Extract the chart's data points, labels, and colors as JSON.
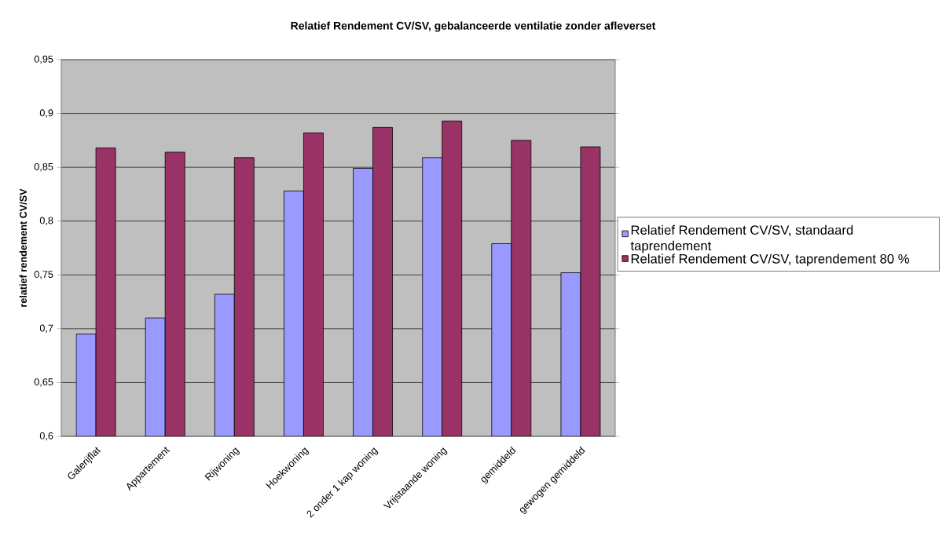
{
  "chart_data": {
    "type": "bar",
    "title": "Relatief Rendement CV/SV, gebalanceerde ventilatie zonder afleverset",
    "ylabel": "relatief rendement CV/SV",
    "categories": [
      "Galerijflat",
      "Appartement",
      "Rijwoning",
      "Hoekwoning",
      "2 onder 1 kap woning",
      "Vrijstaande woning",
      "gemiddeld",
      "gewogen gemiddeld"
    ],
    "series": [
      {
        "name": "Relatief Rendement CV/SV, standaard taprendement",
        "color": "#9999ff",
        "values": [
          0.695,
          0.71,
          0.732,
          0.828,
          0.849,
          0.859,
          0.779,
          0.752
        ]
      },
      {
        "name": "Relatief Rendement CV/SV,  taprendement 80 %",
        "color": "#993366",
        "values": [
          0.868,
          0.864,
          0.859,
          0.882,
          0.887,
          0.893,
          0.875,
          0.869
        ]
      }
    ],
    "ylim": [
      0.6,
      0.95
    ],
    "yticks": [
      {
        "value": 0.6,
        "label": "0,6"
      },
      {
        "value": 0.65,
        "label": "0,65"
      },
      {
        "value": 0.7,
        "label": "0,7"
      },
      {
        "value": 0.75,
        "label": "0,75"
      },
      {
        "value": 0.8,
        "label": "0,8"
      },
      {
        "value": 0.85,
        "label": "0,85"
      },
      {
        "value": 0.9,
        "label": "0,9"
      },
      {
        "value": 0.95,
        "label": "0,95"
      }
    ],
    "grid": "y",
    "legend": "right"
  }
}
